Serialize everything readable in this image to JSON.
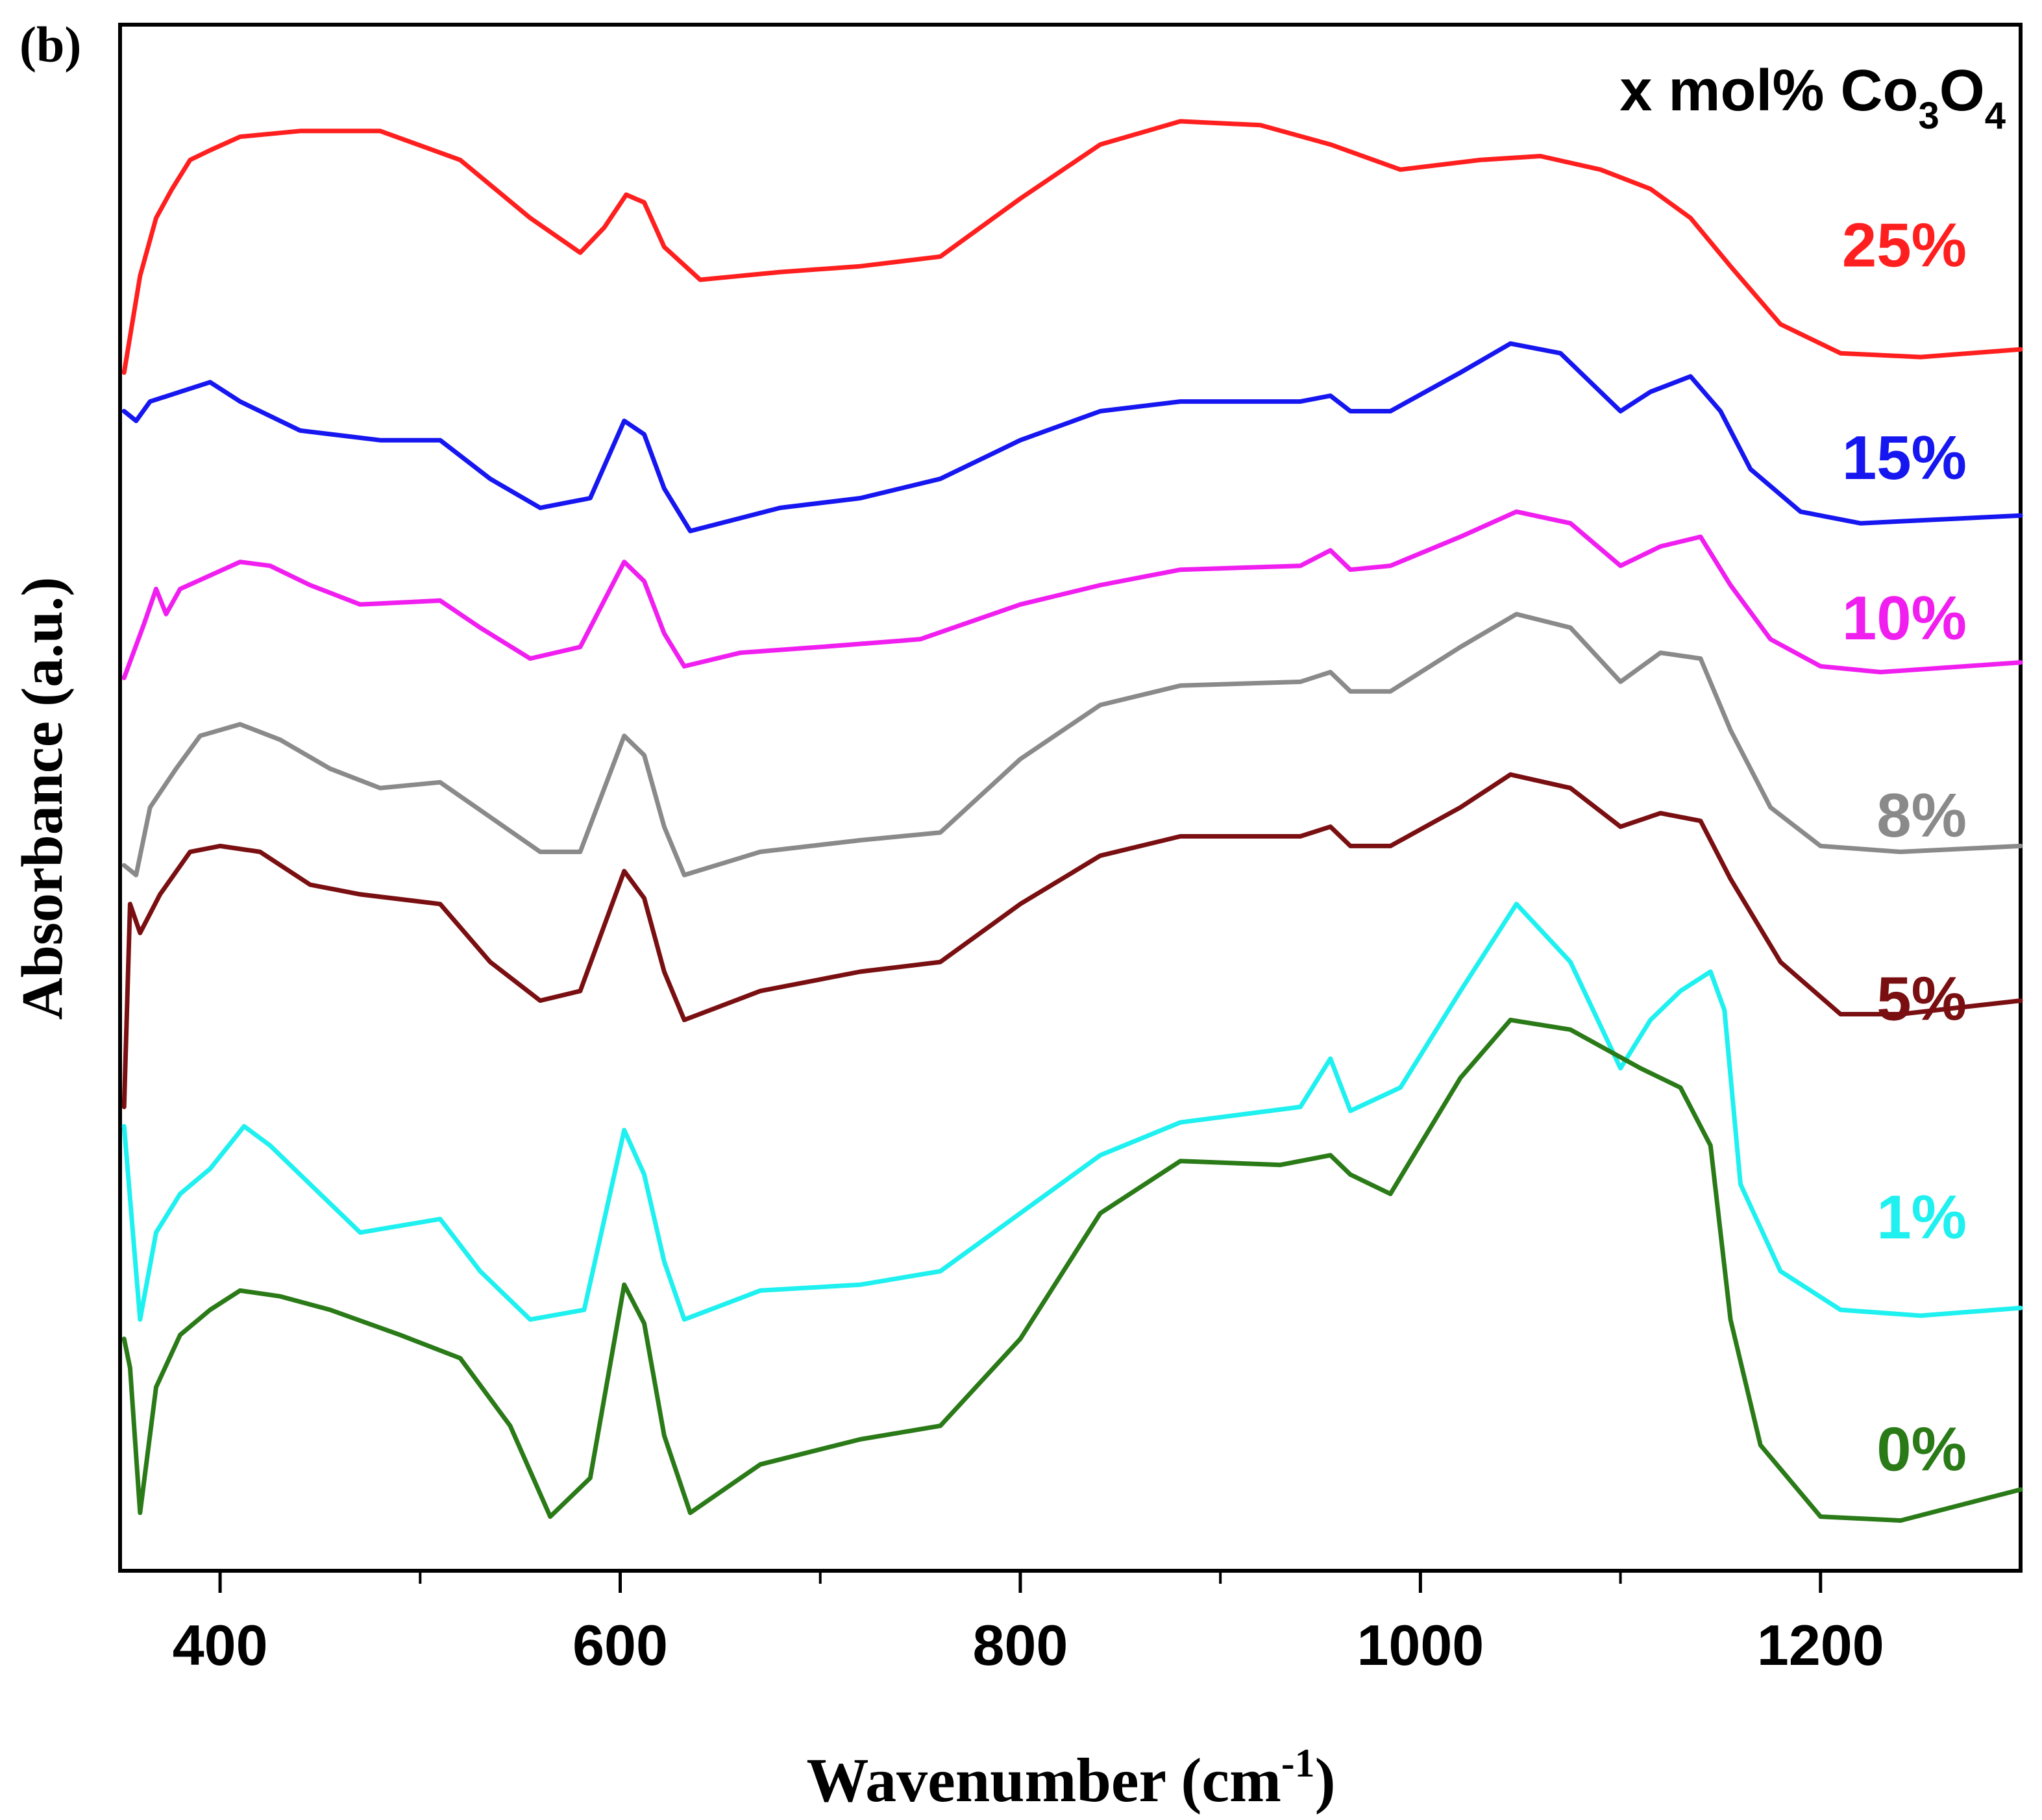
{
  "panel_label": "(b)",
  "chart_data": {
    "type": "line",
    "title": "",
    "xlabel": "Wavenumber (cm",
    "xlabel_sup": "-1",
    "xlabel_close": ")",
    "ylabel": "Absorbance (a.u.)",
    "xlim": [
      350,
      1300
    ],
    "ylim": [
      0,
      8
    ],
    "x_ticks": [
      400,
      600,
      800,
      1000,
      1200
    ],
    "x_minor_ticks": [
      500,
      700,
      900,
      1100
    ],
    "y_ticks_shown": false,
    "grid": false,
    "legend": {
      "title_prefix": "x mol% Co",
      "title_sub1": "3",
      "title_mid": "O",
      "title_sub2": "4",
      "placement": "right, next to each curve"
    },
    "series": [
      {
        "name": "25%",
        "color": "#ff1f1f",
        "label_y": 6.85,
        "points": [
          [
            352,
            6.2
          ],
          [
            360,
            6.7
          ],
          [
            368,
            7.0
          ],
          [
            376,
            7.15
          ],
          [
            385,
            7.3
          ],
          [
            395,
            7.35
          ],
          [
            410,
            7.42
          ],
          [
            440,
            7.45
          ],
          [
            480,
            7.45
          ],
          [
            520,
            7.3
          ],
          [
            555,
            7.0
          ],
          [
            580,
            6.82
          ],
          [
            592,
            6.95
          ],
          [
            603,
            7.12
          ],
          [
            612,
            7.08
          ],
          [
            622,
            6.85
          ],
          [
            640,
            6.68
          ],
          [
            680,
            6.72
          ],
          [
            720,
            6.75
          ],
          [
            760,
            6.8
          ],
          [
            800,
            7.1
          ],
          [
            840,
            7.38
          ],
          [
            880,
            7.5
          ],
          [
            920,
            7.48
          ],
          [
            955,
            7.38
          ],
          [
            990,
            7.25
          ],
          [
            1030,
            7.3
          ],
          [
            1060,
            7.32
          ],
          [
            1090,
            7.25
          ],
          [
            1115,
            7.15
          ],
          [
            1135,
            7.0
          ],
          [
            1155,
            6.75
          ],
          [
            1180,
            6.45
          ],
          [
            1210,
            6.3
          ],
          [
            1250,
            6.28
          ],
          [
            1300,
            6.32
          ]
        ]
      },
      {
        "name": "15%",
        "color": "#1616f0",
        "label_y": 5.75,
        "points": [
          [
            352,
            6.0
          ],
          [
            358,
            5.95
          ],
          [
            365,
            6.05
          ],
          [
            380,
            6.1
          ],
          [
            395,
            6.15
          ],
          [
            410,
            6.05
          ],
          [
            440,
            5.9
          ],
          [
            480,
            5.85
          ],
          [
            510,
            5.85
          ],
          [
            535,
            5.65
          ],
          [
            560,
            5.5
          ],
          [
            585,
            5.55
          ],
          [
            602,
            5.95
          ],
          [
            612,
            5.88
          ],
          [
            622,
            5.6
          ],
          [
            635,
            5.38
          ],
          [
            680,
            5.5
          ],
          [
            720,
            5.55
          ],
          [
            760,
            5.65
          ],
          [
            800,
            5.85
          ],
          [
            840,
            6.0
          ],
          [
            880,
            6.05
          ],
          [
            940,
            6.05
          ],
          [
            955,
            6.08
          ],
          [
            965,
            6.0
          ],
          [
            985,
            6.0
          ],
          [
            1020,
            6.2
          ],
          [
            1045,
            6.35
          ],
          [
            1070,
            6.3
          ],
          [
            1100,
            6.0
          ],
          [
            1115,
            6.1
          ],
          [
            1135,
            6.18
          ],
          [
            1150,
            6.0
          ],
          [
            1165,
            5.7
          ],
          [
            1190,
            5.48
          ],
          [
            1220,
            5.42
          ],
          [
            1260,
            5.44
          ],
          [
            1300,
            5.46
          ]
        ]
      },
      {
        "name": "10%",
        "color": "#f01ff0",
        "label_y": 4.92,
        "points": [
          [
            352,
            4.62
          ],
          [
            362,
            4.9
          ],
          [
            368,
            5.08
          ],
          [
            373,
            4.95
          ],
          [
            380,
            5.08
          ],
          [
            395,
            5.15
          ],
          [
            410,
            5.22
          ],
          [
            425,
            5.2
          ],
          [
            445,
            5.1
          ],
          [
            470,
            5.0
          ],
          [
            510,
            5.02
          ],
          [
            530,
            4.88
          ],
          [
            555,
            4.72
          ],
          [
            580,
            4.78
          ],
          [
            602,
            5.22
          ],
          [
            612,
            5.12
          ],
          [
            622,
            4.85
          ],
          [
            632,
            4.68
          ],
          [
            660,
            4.75
          ],
          [
            700,
            4.78
          ],
          [
            750,
            4.82
          ],
          [
            800,
            5.0
          ],
          [
            840,
            5.1
          ],
          [
            880,
            5.18
          ],
          [
            940,
            5.2
          ],
          [
            955,
            5.28
          ],
          [
            965,
            5.18
          ],
          [
            985,
            5.2
          ],
          [
            1020,
            5.35
          ],
          [
            1048,
            5.48
          ],
          [
            1075,
            5.42
          ],
          [
            1100,
            5.2
          ],
          [
            1120,
            5.3
          ],
          [
            1140,
            5.35
          ],
          [
            1155,
            5.1
          ],
          [
            1175,
            4.82
          ],
          [
            1200,
            4.68
          ],
          [
            1230,
            4.65
          ],
          [
            1300,
            4.7
          ]
        ]
      },
      {
        "name": "8%",
        "color": "#8a8a8a",
        "label_y": 3.9,
        "points": [
          [
            352,
            3.65
          ],
          [
            358,
            3.6
          ],
          [
            365,
            3.95
          ],
          [
            378,
            4.15
          ],
          [
            390,
            4.32
          ],
          [
            410,
            4.38
          ],
          [
            430,
            4.3
          ],
          [
            455,
            4.15
          ],
          [
            480,
            4.05
          ],
          [
            510,
            4.08
          ],
          [
            535,
            3.9
          ],
          [
            560,
            3.72
          ],
          [
            580,
            3.72
          ],
          [
            602,
            4.32
          ],
          [
            612,
            4.22
          ],
          [
            622,
            3.85
          ],
          [
            632,
            3.6
          ],
          [
            670,
            3.72
          ],
          [
            720,
            3.78
          ],
          [
            760,
            3.82
          ],
          [
            800,
            4.2
          ],
          [
            840,
            4.48
          ],
          [
            880,
            4.58
          ],
          [
            940,
            4.6
          ],
          [
            955,
            4.65
          ],
          [
            965,
            4.55
          ],
          [
            985,
            4.55
          ],
          [
            1020,
            4.78
          ],
          [
            1048,
            4.95
          ],
          [
            1075,
            4.88
          ],
          [
            1100,
            4.6
          ],
          [
            1120,
            4.75
          ],
          [
            1140,
            4.72
          ],
          [
            1155,
            4.35
          ],
          [
            1175,
            3.95
          ],
          [
            1200,
            3.75
          ],
          [
            1240,
            3.72
          ],
          [
            1300,
            3.75
          ]
        ]
      },
      {
        "name": "5%",
        "color": "#7a0f12",
        "label_y": 2.95,
        "points": [
          [
            352,
            2.4
          ],
          [
            355,
            3.45
          ],
          [
            360,
            3.3
          ],
          [
            370,
            3.5
          ],
          [
            385,
            3.72
          ],
          [
            400,
            3.75
          ],
          [
            420,
            3.72
          ],
          [
            445,
            3.55
          ],
          [
            470,
            3.5
          ],
          [
            510,
            3.45
          ],
          [
            535,
            3.15
          ],
          [
            560,
            2.95
          ],
          [
            580,
            3.0
          ],
          [
            602,
            3.62
          ],
          [
            612,
            3.48
          ],
          [
            622,
            3.1
          ],
          [
            632,
            2.85
          ],
          [
            670,
            3.0
          ],
          [
            720,
            3.1
          ],
          [
            760,
            3.15
          ],
          [
            800,
            3.45
          ],
          [
            840,
            3.7
          ],
          [
            880,
            3.8
          ],
          [
            940,
            3.8
          ],
          [
            955,
            3.85
          ],
          [
            965,
            3.75
          ],
          [
            985,
            3.75
          ],
          [
            1020,
            3.95
          ],
          [
            1045,
            4.12
          ],
          [
            1075,
            4.05
          ],
          [
            1100,
            3.85
          ],
          [
            1120,
            3.92
          ],
          [
            1140,
            3.88
          ],
          [
            1155,
            3.58
          ],
          [
            1180,
            3.15
          ],
          [
            1210,
            2.88
          ],
          [
            1240,
            2.88
          ],
          [
            1300,
            2.95
          ]
        ]
      },
      {
        "name": "1%",
        "color": "#1ff0f0",
        "label_y": 1.82,
        "points": [
          [
            352,
            2.3
          ],
          [
            360,
            1.3
          ],
          [
            368,
            1.75
          ],
          [
            380,
            1.95
          ],
          [
            395,
            2.08
          ],
          [
            412,
            2.3
          ],
          [
            425,
            2.2
          ],
          [
            445,
            2.0
          ],
          [
            470,
            1.75
          ],
          [
            510,
            1.82
          ],
          [
            530,
            1.55
          ],
          [
            555,
            1.3
          ],
          [
            582,
            1.35
          ],
          [
            602,
            2.28
          ],
          [
            612,
            2.05
          ],
          [
            622,
            1.6
          ],
          [
            632,
            1.3
          ],
          [
            670,
            1.45
          ],
          [
            720,
            1.48
          ],
          [
            760,
            1.55
          ],
          [
            800,
            1.85
          ],
          [
            840,
            2.15
          ],
          [
            880,
            2.32
          ],
          [
            940,
            2.4
          ],
          [
            955,
            2.65
          ],
          [
            965,
            2.38
          ],
          [
            990,
            2.5
          ],
          [
            1020,
            3.0
          ],
          [
            1048,
            3.45
          ],
          [
            1075,
            3.15
          ],
          [
            1100,
            2.6
          ],
          [
            1115,
            2.85
          ],
          [
            1130,
            3.0
          ],
          [
            1145,
            3.1
          ],
          [
            1152,
            2.9
          ],
          [
            1160,
            2.0
          ],
          [
            1180,
            1.55
          ],
          [
            1210,
            1.35
          ],
          [
            1250,
            1.32
          ],
          [
            1300,
            1.36
          ]
        ]
      },
      {
        "name": "0%",
        "color": "#2a7a18",
        "label_y": 0.62,
        "points": [
          [
            352,
            1.2
          ],
          [
            355,
            1.05
          ],
          [
            360,
            0.3
          ],
          [
            368,
            0.95
          ],
          [
            380,
            1.22
          ],
          [
            395,
            1.35
          ],
          [
            410,
            1.45
          ],
          [
            430,
            1.42
          ],
          [
            455,
            1.35
          ],
          [
            490,
            1.22
          ],
          [
            520,
            1.1
          ],
          [
            545,
            0.75
          ],
          [
            565,
            0.28
          ],
          [
            585,
            0.48
          ],
          [
            602,
            1.48
          ],
          [
            612,
            1.28
          ],
          [
            622,
            0.7
          ],
          [
            635,
            0.3
          ],
          [
            670,
            0.55
          ],
          [
            720,
            0.68
          ],
          [
            760,
            0.75
          ],
          [
            800,
            1.2
          ],
          [
            840,
            1.85
          ],
          [
            880,
            2.12
          ],
          [
            930,
            2.1
          ],
          [
            955,
            2.15
          ],
          [
            965,
            2.05
          ],
          [
            985,
            1.95
          ],
          [
            1020,
            2.55
          ],
          [
            1045,
            2.85
          ],
          [
            1075,
            2.8
          ],
          [
            1110,
            2.6
          ],
          [
            1130,
            2.5
          ],
          [
            1145,
            2.2
          ],
          [
            1155,
            1.3
          ],
          [
            1170,
            0.65
          ],
          [
            1200,
            0.28
          ],
          [
            1240,
            0.26
          ],
          [
            1300,
            0.42
          ]
        ]
      }
    ]
  }
}
